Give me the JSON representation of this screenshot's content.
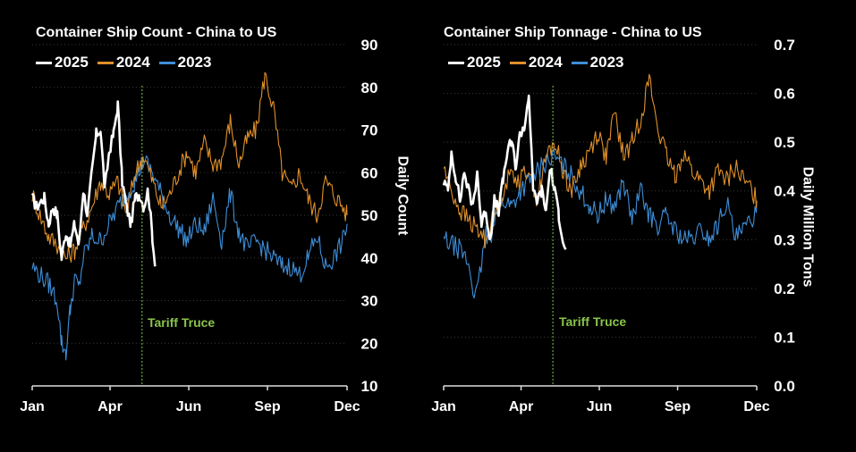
{
  "colors": {
    "background": "#000000",
    "y2025": "#ffffff",
    "y2024": "#e0902a",
    "y2023": "#3e8ed8",
    "truce": "#8ac44a",
    "grid": "#3a3a3a"
  },
  "chart_data": [
    {
      "type": "line",
      "title": "Container Ship Count - China to US",
      "ylabel": "Daily Count",
      "xlabel": "",
      "ylim": [
        10,
        90
      ],
      "yticks": [
        "10",
        "20",
        "30",
        "40",
        "50",
        "60",
        "70",
        "80",
        "90"
      ],
      "xlim": [
        1,
        365
      ],
      "xticks": [
        {
          "label": "Jan",
          "day": 1
        },
        {
          "label": "Apr",
          "day": 91
        },
        {
          "label": "Jun",
          "day": 182
        },
        {
          "label": "Sep",
          "day": 273
        },
        {
          "label": "Dec",
          "day": 365
        }
      ],
      "legend": [
        "2025",
        "2024",
        "2023"
      ],
      "legend_position": "top-left",
      "grid": "horizontal dotted",
      "annotation": {
        "label": "Tariff Truce",
        "day": 128
      },
      "series": [
        {
          "name": "2025",
          "color": "#ffffff",
          "x": [
            1,
            6,
            10,
            15,
            20,
            25,
            30,
            35,
            40,
            45,
            50,
            55,
            60,
            65,
            70,
            75,
            80,
            85,
            90,
            95,
            100,
            105,
            110,
            115,
            120,
            125,
            130,
            135,
            140,
            143
          ],
          "y": [
            54,
            52,
            53,
            54,
            48,
            52,
            50,
            40,
            46,
            43,
            48,
            43,
            56,
            50,
            60,
            69,
            70,
            56,
            65,
            69,
            76,
            58,
            52,
            48,
            54,
            55,
            52,
            56,
            45,
            38
          ]
        },
        {
          "name": "2024",
          "color": "#e0902a",
          "x": [
            1,
            10,
            20,
            30,
            40,
            50,
            60,
            70,
            80,
            90,
            100,
            110,
            120,
            130,
            140,
            150,
            160,
            170,
            180,
            190,
            200,
            210,
            220,
            230,
            240,
            250,
            260,
            270,
            280,
            290,
            300,
            310,
            320,
            330,
            340,
            350,
            360,
            365
          ],
          "y": [
            55,
            50,
            45,
            43,
            40,
            42,
            47,
            52,
            58,
            55,
            58,
            50,
            60,
            64,
            58,
            52,
            55,
            60,
            65,
            60,
            67,
            62,
            63,
            72,
            62,
            68,
            70,
            83,
            75,
            60,
            56,
            60,
            54,
            50,
            58,
            55,
            52,
            50
          ]
        },
        {
          "name": "2023",
          "color": "#3e8ed8",
          "x": [
            1,
            10,
            20,
            30,
            35,
            40,
            45,
            50,
            55,
            60,
            70,
            80,
            90,
            100,
            110,
            120,
            130,
            140,
            150,
            160,
            170,
            180,
            190,
            200,
            210,
            220,
            230,
            240,
            250,
            260,
            270,
            280,
            290,
            300,
            310,
            320,
            330,
            340,
            350,
            360,
            365
          ],
          "y": [
            38,
            36,
            34,
            30,
            20,
            18,
            28,
            35,
            33,
            40,
            45,
            44,
            48,
            52,
            55,
            58,
            63,
            60,
            55,
            50,
            47,
            44,
            48,
            46,
            54,
            44,
            55,
            46,
            42,
            44,
            42,
            40,
            38,
            38,
            36,
            40,
            45,
            38,
            40,
            44,
            48
          ]
        }
      ]
    },
    {
      "type": "line",
      "title": "Container Ship Tonnage - China to US",
      "ylabel": "Daily Million Tons",
      "xlabel": "",
      "ylim": [
        0.0,
        0.7
      ],
      "yticks": [
        "0.0",
        "0.1",
        "0.2",
        "0.3",
        "0.4",
        "0.5",
        "0.6",
        "0.7"
      ],
      "xlim": [
        1,
        365
      ],
      "xticks": [
        {
          "label": "Jan",
          "day": 1
        },
        {
          "label": "Apr",
          "day": 91
        },
        {
          "label": "Jun",
          "day": 182
        },
        {
          "label": "Sep",
          "day": 273
        },
        {
          "label": "Dec",
          "day": 365
        }
      ],
      "legend": [
        "2025",
        "2024",
        "2023"
      ],
      "legend_position": "top-left",
      "grid": "horizontal dotted",
      "annotation": {
        "label": "Tariff Truce",
        "day": 128
      },
      "series": [
        {
          "name": "2025",
          "color": "#ffffff",
          "x": [
            1,
            6,
            10,
            15,
            20,
            25,
            30,
            35,
            40,
            45,
            50,
            55,
            60,
            65,
            70,
            75,
            80,
            85,
            90,
            95,
            100,
            105,
            110,
            115,
            120,
            125,
            130,
            135,
            140,
            143
          ],
          "y": [
            0.42,
            0.4,
            0.48,
            0.43,
            0.38,
            0.44,
            0.4,
            0.37,
            0.44,
            0.33,
            0.36,
            0.3,
            0.38,
            0.36,
            0.42,
            0.48,
            0.5,
            0.45,
            0.52,
            0.53,
            0.6,
            0.4,
            0.38,
            0.4,
            0.36,
            0.45,
            0.4,
            0.35,
            0.3,
            0.28
          ]
        },
        {
          "name": "2024",
          "color": "#e0902a",
          "x": [
            1,
            10,
            20,
            30,
            40,
            50,
            60,
            70,
            80,
            90,
            100,
            110,
            120,
            130,
            140,
            150,
            160,
            170,
            180,
            190,
            200,
            210,
            220,
            230,
            240,
            250,
            260,
            270,
            280,
            290,
            300,
            310,
            320,
            330,
            340,
            350,
            360,
            365
          ],
          "y": [
            0.45,
            0.4,
            0.36,
            0.34,
            0.32,
            0.3,
            0.35,
            0.4,
            0.44,
            0.42,
            0.45,
            0.38,
            0.47,
            0.5,
            0.44,
            0.4,
            0.45,
            0.48,
            0.52,
            0.47,
            0.56,
            0.47,
            0.5,
            0.55,
            0.63,
            0.53,
            0.47,
            0.43,
            0.48,
            0.44,
            0.42,
            0.4,
            0.44,
            0.42,
            0.45,
            0.42,
            0.4,
            0.38
          ]
        },
        {
          "name": "2023",
          "color": "#3e8ed8",
          "x": [
            1,
            10,
            20,
            30,
            35,
            40,
            45,
            50,
            55,
            60,
            70,
            80,
            90,
            100,
            110,
            120,
            130,
            140,
            150,
            160,
            170,
            180,
            190,
            200,
            210,
            220,
            230,
            240,
            250,
            260,
            270,
            280,
            290,
            300,
            310,
            320,
            330,
            340,
            350,
            360,
            365
          ],
          "y": [
            0.3,
            0.29,
            0.28,
            0.25,
            0.2,
            0.19,
            0.25,
            0.31,
            0.3,
            0.35,
            0.38,
            0.37,
            0.4,
            0.42,
            0.44,
            0.46,
            0.47,
            0.45,
            0.43,
            0.4,
            0.37,
            0.35,
            0.38,
            0.37,
            0.42,
            0.34,
            0.4,
            0.35,
            0.33,
            0.35,
            0.32,
            0.3,
            0.3,
            0.32,
            0.3,
            0.33,
            0.38,
            0.3,
            0.32,
            0.34,
            0.38
          ]
        }
      ]
    }
  ]
}
